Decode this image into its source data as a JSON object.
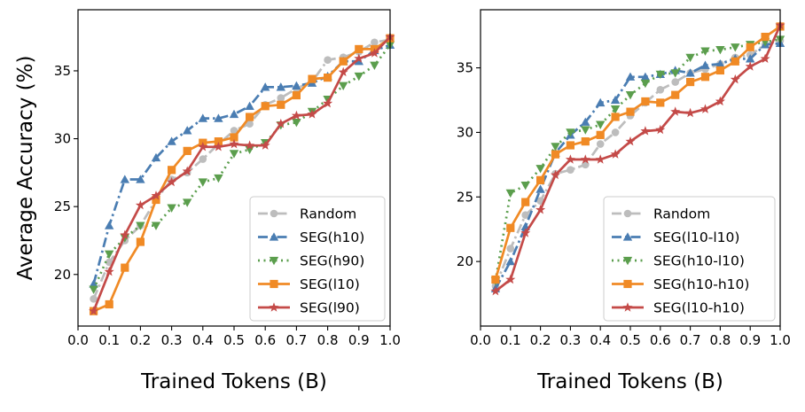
{
  "chart_data": [
    {
      "type": "line",
      "xlabel": "Trained Tokens (B)",
      "ylabel": "Average Accuracy (%)",
      "xlim": [
        0.0,
        1.0
      ],
      "ylim": [
        16.2,
        39.5
      ],
      "xticks": [
        "0.0",
        "0.1",
        "0.2",
        "0.3",
        "0.4",
        "0.5",
        "0.6",
        "0.7",
        "0.8",
        "0.9",
        "1.0"
      ],
      "yticks": [
        "20",
        "25",
        "30",
        "35"
      ],
      "grid": false,
      "legend_position": "lower-right",
      "x": [
        0.05,
        0.1,
        0.15,
        0.2,
        0.25,
        0.3,
        0.35,
        0.4,
        0.45,
        0.5,
        0.55,
        0.6,
        0.65,
        0.7,
        0.75,
        0.8,
        0.85,
        0.9,
        0.95,
        1.0
      ],
      "series": [
        {
          "name": "Random",
          "color": "#bdbdbd",
          "marker": "circle",
          "dash": "dashdot",
          "values": [
            18.2,
            20.9,
            22.5,
            23.6,
            25.5,
            27.0,
            27.5,
            28.5,
            29.6,
            30.6,
            31.1,
            32.5,
            33.0,
            33.7,
            34.2,
            35.8,
            36.0,
            36.4,
            37.1,
            37.3
          ]
        },
        {
          "name": "SEG(h10)",
          "color": "#4a7db2",
          "marker": "triangle-up",
          "dash": "dashdot",
          "values": [
            19.3,
            23.6,
            27.0,
            27.0,
            28.6,
            29.8,
            30.6,
            31.5,
            31.5,
            31.8,
            32.4,
            33.8,
            33.8,
            33.9,
            34.1,
            34.6,
            35.7,
            35.7,
            36.5,
            36.9
          ]
        },
        {
          "name": "SEG(h90)",
          "color": "#5b9e4d",
          "marker": "triangle-down",
          "dash": "dotted",
          "values": [
            18.9,
            21.5,
            22.7,
            23.6,
            23.6,
            24.9,
            25.3,
            26.8,
            27.1,
            28.9,
            29.2,
            29.7,
            31.0,
            31.2,
            32.0,
            32.9,
            33.9,
            34.6,
            35.4,
            36.9
          ]
        },
        {
          "name": "SEG(l10)",
          "color": "#f08a25",
          "marker": "square",
          "dash": "solid",
          "values": [
            17.3,
            17.8,
            20.5,
            22.4,
            25.5,
            27.7,
            29.1,
            29.7,
            29.8,
            30.1,
            31.6,
            32.4,
            32.5,
            33.2,
            34.4,
            34.5,
            35.7,
            36.6,
            36.6,
            37.4
          ]
        },
        {
          "name": "SEG(l90)",
          "color": "#c44a48",
          "marker": "star",
          "dash": "solid",
          "values": [
            17.3,
            20.2,
            22.9,
            25.1,
            25.8,
            26.8,
            27.6,
            29.4,
            29.4,
            29.6,
            29.5,
            29.5,
            31.1,
            31.7,
            31.8,
            32.6,
            34.9,
            35.9,
            36.3,
            37.5
          ]
        }
      ]
    },
    {
      "type": "line",
      "xlabel": "Trained Tokens (B)",
      "ylabel": "",
      "xlim": [
        0.0,
        1.0
      ],
      "ylim": [
        15.0,
        39.5
      ],
      "xticks": [
        "0.0",
        "0.1",
        "0.2",
        "0.3",
        "0.4",
        "0.5",
        "0.6",
        "0.7",
        "0.8",
        "0.9",
        "1.0"
      ],
      "yticks": [
        "20",
        "25",
        "30",
        "35"
      ],
      "grid": false,
      "legend_position": "lower-right",
      "x": [
        0.05,
        0.1,
        0.15,
        0.2,
        0.25,
        0.3,
        0.35,
        0.4,
        0.45,
        0.5,
        0.55,
        0.6,
        0.65,
        0.7,
        0.75,
        0.8,
        0.85,
        0.9,
        0.95,
        1.0
      ],
      "series": [
        {
          "name": "Random",
          "color": "#bdbdbd",
          "marker": "circle",
          "dash": "dashdot",
          "values": [
            18.1,
            21.0,
            23.6,
            24.7,
            26.8,
            27.1,
            27.5,
            29.1,
            30.0,
            31.3,
            32.3,
            33.3,
            33.9,
            34.6,
            34.9,
            35.3,
            35.8,
            36.0,
            36.8,
            37.1
          ]
        },
        {
          "name": "SEG(l10-l10)",
          "color": "#4a7db2",
          "marker": "triangle-up",
          "dash": "dashdot",
          "values": [
            17.9,
            20.0,
            22.7,
            25.6,
            28.4,
            29.8,
            30.8,
            32.3,
            32.5,
            34.3,
            34.3,
            34.5,
            34.8,
            34.6,
            35.2,
            35.3,
            35.7,
            35.7,
            36.8,
            36.9
          ]
        },
        {
          "name": "SEG(h10-l10)",
          "color": "#5b9e4d",
          "marker": "triangle-down",
          "dash": "dotted",
          "values": [
            18.5,
            25.3,
            25.9,
            27.2,
            28.9,
            30.0,
            30.2,
            30.6,
            31.8,
            32.9,
            33.8,
            34.5,
            34.6,
            35.8,
            36.3,
            36.4,
            36.6,
            36.8,
            37.0,
            37.2
          ]
        },
        {
          "name": "SEG(h10-h10)",
          "color": "#f08a25",
          "marker": "square",
          "dash": "solid",
          "values": [
            18.6,
            22.6,
            24.6,
            26.3,
            28.3,
            29.0,
            29.3,
            29.8,
            31.2,
            31.6,
            32.4,
            32.3,
            32.9,
            33.9,
            34.3,
            34.8,
            35.5,
            36.6,
            37.4,
            38.2
          ]
        },
        {
          "name": "SEG(l10-h10)",
          "color": "#c44a48",
          "marker": "star",
          "dash": "solid",
          "values": [
            17.7,
            18.6,
            22.2,
            24.0,
            26.7,
            27.9,
            27.9,
            27.9,
            28.3,
            29.3,
            30.1,
            30.2,
            31.6,
            31.5,
            31.8,
            32.4,
            34.1,
            35.1,
            35.7,
            38.3
          ]
        }
      ]
    }
  ]
}
